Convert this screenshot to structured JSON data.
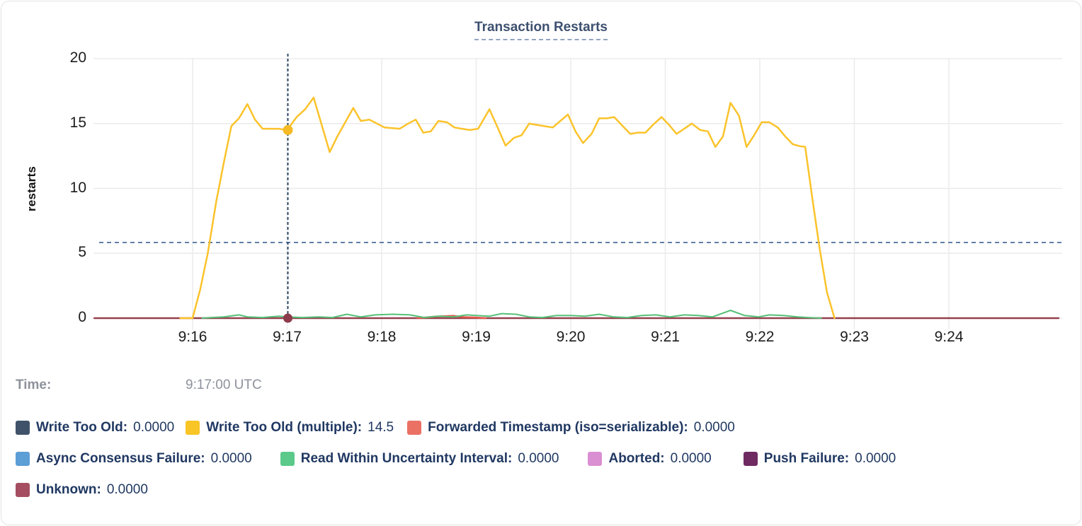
{
  "title": "Transaction Restarts",
  "tooltip": {
    "time_label": "Time:",
    "time_value": "9:17:00 UTC"
  },
  "legend": {
    "rows": [
      {
        "items": [
          {
            "label": "Write Too Old:",
            "value": "0.0000",
            "color": "#3F5269"
          },
          {
            "label": "Write Too Old (multiple):",
            "value": "14.5",
            "color": "#F8C426"
          },
          {
            "label": "Forwarded Timestamp (iso=serializable):",
            "value": "0.0000",
            "color": "#EA7164"
          }
        ]
      },
      {
        "items": [
          {
            "label": "Async Consensus Failure:",
            "value": "0.0000",
            "color": "#5C9ED6"
          },
          {
            "label": "Read Within Uncertainty Interval:",
            "value": "0.0000",
            "color": "#5BC98A"
          },
          {
            "label": "Aborted:",
            "value": "0.0000",
            "color": "#DA8FD2"
          },
          {
            "label": "Push Failure:",
            "value": "0.0000",
            "color": "#6F2A62"
          }
        ]
      },
      {
        "items": [
          {
            "label": "Unknown:",
            "value": "0.0000",
            "color": "#A54E61"
          }
        ]
      }
    ]
  },
  "chart_data": {
    "type": "line",
    "title": "Transaction Restarts",
    "ylabel": "restarts",
    "ylim": [
      0,
      20
    ],
    "y_ticks": [
      0,
      5,
      10,
      15,
      20
    ],
    "x_ticks": [
      "9:16",
      "9:17",
      "9:18",
      "9:19",
      "9:20",
      "9:21",
      "9:22",
      "9:23",
      "9:24"
    ],
    "grid": true,
    "avg_line_value": 5.83,
    "hover": {
      "time": "9:17:00 UTC",
      "x_tick": "9:17",
      "highlight_series": "Write Too Old (multiple)",
      "highlight_value": 14.5
    },
    "series": [
      {
        "name": "Unknown",
        "color": "#96404E",
        "width": 2.5,
        "points": [
          [
            14.96,
            0
          ],
          [
            25.16,
            0
          ]
        ]
      },
      {
        "name": "Forwarded Timestamp (iso=serializable)",
        "color": "#E4574B",
        "width": 2.5,
        "points": [
          [
            18.38,
            0
          ],
          [
            18.57,
            0.12
          ],
          [
            18.76,
            0.18
          ],
          [
            18.87,
            0.08
          ],
          [
            19.0,
            0.05
          ],
          [
            19.1,
            0
          ]
        ]
      },
      {
        "name": "Read Within Uncertainty Interval",
        "color": "#55C077",
        "width": 2,
        "points": [
          [
            16.1,
            0
          ],
          [
            16.2,
            0.05
          ],
          [
            16.33,
            0.1
          ],
          [
            16.49,
            0.25
          ],
          [
            16.58,
            0.1
          ],
          [
            16.74,
            0.05
          ],
          [
            16.91,
            0.15
          ],
          [
            17.0,
            0.1
          ],
          [
            17.16,
            0.05
          ],
          [
            17.33,
            0.1
          ],
          [
            17.48,
            0.05
          ],
          [
            17.63,
            0.3
          ],
          [
            17.78,
            0.1
          ],
          [
            17.93,
            0.25
          ],
          [
            18.12,
            0.3
          ],
          [
            18.3,
            0.25
          ],
          [
            18.45,
            0.05
          ],
          [
            18.6,
            0.15
          ],
          [
            18.76,
            0.1
          ],
          [
            18.9,
            0.25
          ],
          [
            19.0,
            0.2
          ],
          [
            19.14,
            0.15
          ],
          [
            19.27,
            0.35
          ],
          [
            19.42,
            0.3
          ],
          [
            19.56,
            0.1
          ],
          [
            19.7,
            0.05
          ],
          [
            19.85,
            0.2
          ],
          [
            20.0,
            0.2
          ],
          [
            20.15,
            0.15
          ],
          [
            20.3,
            0.3
          ],
          [
            20.45,
            0.1
          ],
          [
            20.6,
            0.05
          ],
          [
            20.75,
            0.2
          ],
          [
            20.9,
            0.25
          ],
          [
            21.05,
            0.1
          ],
          [
            21.2,
            0.25
          ],
          [
            21.35,
            0.2
          ],
          [
            21.5,
            0.1
          ],
          [
            21.69,
            0.6
          ],
          [
            21.84,
            0.2
          ],
          [
            21.99,
            0.1
          ],
          [
            22.1,
            0.25
          ],
          [
            22.25,
            0.2
          ],
          [
            22.4,
            0.1
          ],
          [
            22.51,
            0.05
          ],
          [
            22.65,
            0
          ]
        ]
      },
      {
        "name": "Write Too Old (multiple)",
        "color": "#FBC32B",
        "width": 2.5,
        "points": [
          [
            15.87,
            0
          ],
          [
            16.0,
            0
          ],
          [
            16.08,
            2.2
          ],
          [
            16.16,
            5.0
          ],
          [
            16.25,
            9.0
          ],
          [
            16.33,
            12.0
          ],
          [
            16.41,
            14.8
          ],
          [
            16.49,
            15.4
          ],
          [
            16.58,
            16.5
          ],
          [
            16.66,
            15.3
          ],
          [
            16.74,
            14.6
          ],
          [
            16.91,
            14.6
          ],
          [
            17.0,
            14.5
          ],
          [
            17.1,
            15.5
          ],
          [
            17.19,
            16.1
          ],
          [
            17.28,
            17.0
          ],
          [
            17.45,
            12.8
          ],
          [
            17.53,
            14.0
          ],
          [
            17.7,
            16.2
          ],
          [
            17.78,
            15.2
          ],
          [
            17.87,
            15.3
          ],
          [
            17.95,
            15.0
          ],
          [
            18.03,
            14.7
          ],
          [
            18.19,
            14.6
          ],
          [
            18.28,
            15.0
          ],
          [
            18.36,
            15.3
          ],
          [
            18.44,
            14.3
          ],
          [
            18.52,
            14.4
          ],
          [
            18.6,
            15.2
          ],
          [
            18.69,
            15.1
          ],
          [
            18.77,
            14.7
          ],
          [
            18.85,
            14.6
          ],
          [
            18.93,
            14.5
          ],
          [
            19.02,
            14.6
          ],
          [
            19.14,
            16.1
          ],
          [
            19.22,
            14.8
          ],
          [
            19.31,
            13.3
          ],
          [
            19.4,
            13.9
          ],
          [
            19.48,
            14.1
          ],
          [
            19.56,
            15.0
          ],
          [
            19.64,
            14.9
          ],
          [
            19.72,
            14.8
          ],
          [
            19.81,
            14.7
          ],
          [
            19.89,
            15.2
          ],
          [
            19.97,
            15.7
          ],
          [
            20.05,
            14.4
          ],
          [
            20.13,
            13.5
          ],
          [
            20.22,
            14.2
          ],
          [
            20.3,
            15.4
          ],
          [
            20.38,
            15.4
          ],
          [
            20.46,
            15.5
          ],
          [
            20.55,
            14.8
          ],
          [
            20.63,
            14.2
          ],
          [
            20.71,
            14.3
          ],
          [
            20.79,
            14.3
          ],
          [
            20.87,
            14.9
          ],
          [
            20.96,
            15.5
          ],
          [
            21.04,
            14.9
          ],
          [
            21.12,
            14.2
          ],
          [
            21.2,
            14.6
          ],
          [
            21.28,
            15.0
          ],
          [
            21.37,
            14.5
          ],
          [
            21.45,
            14.4
          ],
          [
            21.53,
            13.2
          ],
          [
            21.61,
            14.0
          ],
          [
            21.69,
            16.6
          ],
          [
            21.78,
            15.6
          ],
          [
            21.86,
            13.2
          ],
          [
            21.94,
            14.1
          ],
          [
            22.02,
            15.1
          ],
          [
            22.1,
            15.1
          ],
          [
            22.19,
            14.7
          ],
          [
            22.27,
            14.0
          ],
          [
            22.35,
            13.4
          ],
          [
            22.43,
            13.25
          ],
          [
            22.48,
            13.2
          ],
          [
            22.56,
            9.0
          ],
          [
            22.63,
            5.5
          ],
          [
            22.71,
            2.0
          ],
          [
            22.79,
            0
          ]
        ]
      }
    ]
  }
}
